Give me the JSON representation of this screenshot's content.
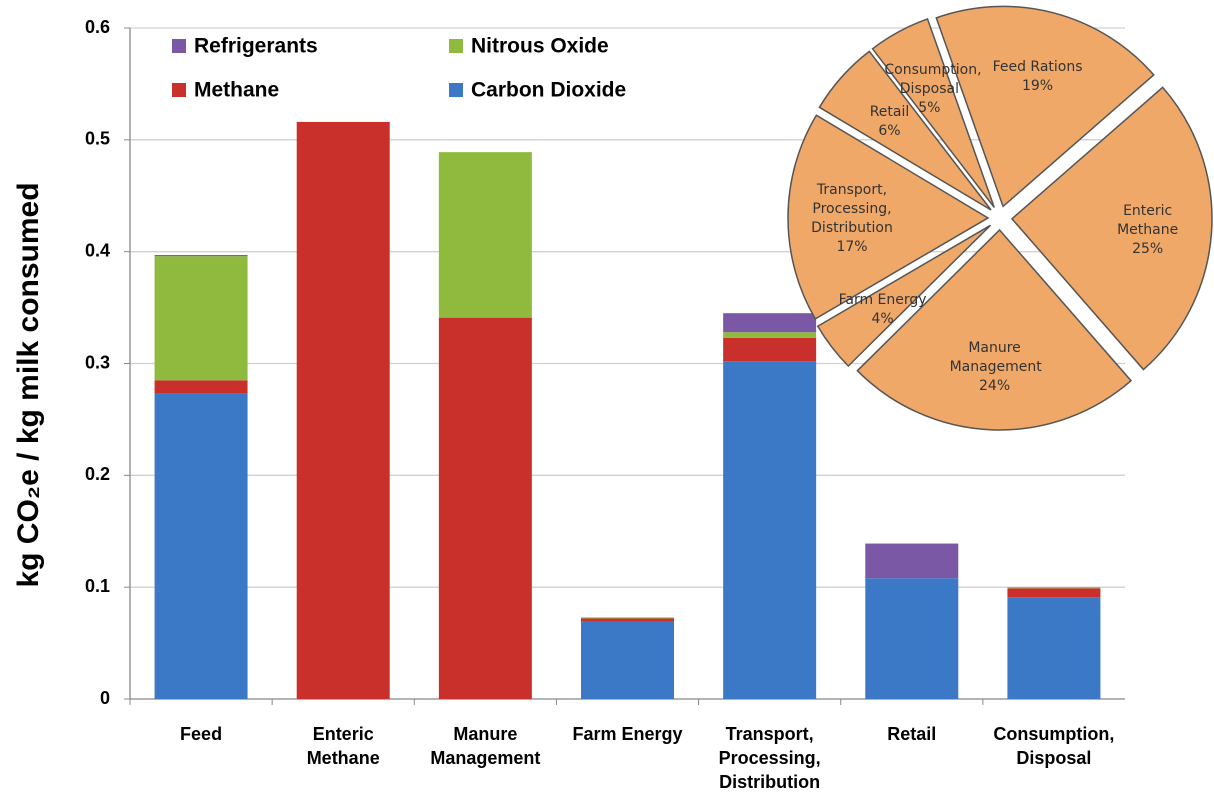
{
  "chart_data": [
    {
      "type": "stacked_bar",
      "ylabel": "kg CO₂e / kg milk consumed",
      "categories": [
        "Feed",
        "Enteric Methane",
        "Manure Management",
        "Farm Energy",
        "Transport, Processing, Distribution",
        "Retail",
        "Consumption, Disposal"
      ],
      "series": [
        {
          "name": "Carbon Dioxide",
          "color": "#3b78c6",
          "values": [
            0.273,
            0,
            0,
            0.069,
            0.302,
            0.108,
            0.091
          ]
        },
        {
          "name": "Methane",
          "color": "#c9302c",
          "values": [
            0.012,
            0.516,
            0.341,
            0.003,
            0.021,
            0,
            0.008
          ]
        },
        {
          "name": "Nitrous Oxide",
          "color": "#8fba3e",
          "values": [
            0.111,
            0,
            0.148,
            0.001,
            0.005,
            0,
            0.001
          ]
        },
        {
          "name": "Refrigerants",
          "color": "#7b58a6",
          "values": [
            0.001,
            0,
            0,
            0,
            0.017,
            0.031,
            0
          ]
        }
      ],
      "ylim": [
        0,
        0.6
      ],
      "yticks": [
        0,
        0.1,
        0.2,
        0.3,
        0.4,
        0.5,
        0.6
      ],
      "grid": true
    },
    {
      "type": "pie",
      "color": "#f0a868",
      "categories": [
        "Enteric Methane",
        "Manure Management",
        "Farm Energy",
        "Transport, Processing, Distribution",
        "Retail",
        "Consumption, Disposal",
        "Feed Rations"
      ],
      "values": [
        25,
        24,
        4,
        17,
        6,
        5,
        19
      ],
      "value_labels": [
        "25%",
        "24%",
        "4%",
        "17%",
        "6%",
        "5%",
        "19%"
      ]
    }
  ]
}
